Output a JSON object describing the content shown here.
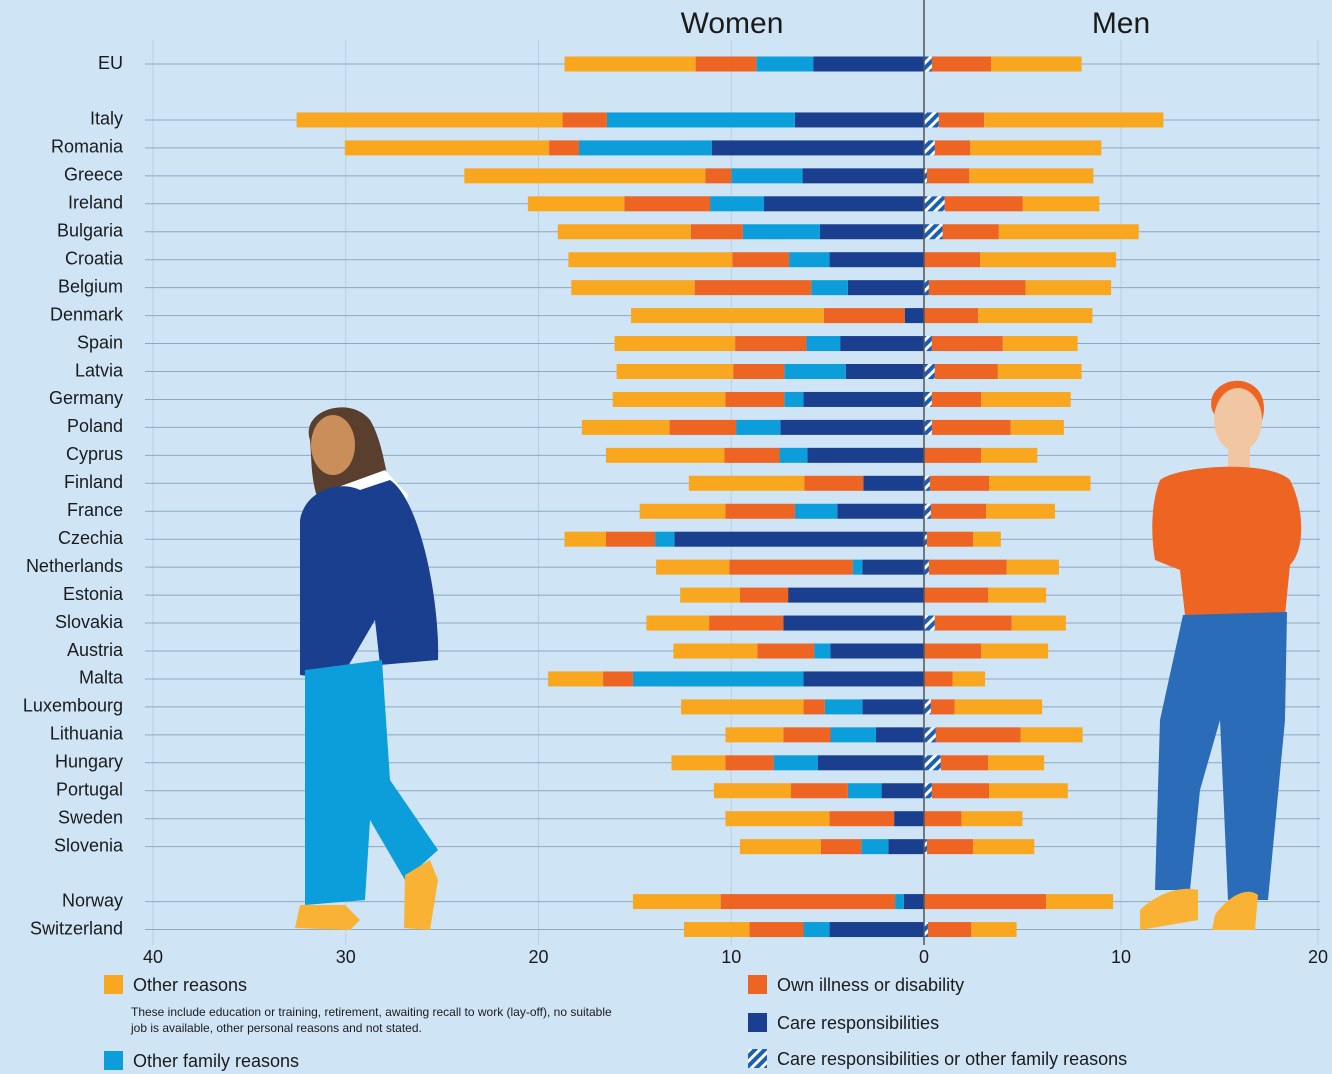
{
  "chart_data": [
    {
      "type": "bar",
      "title": "Women",
      "categories": [
        "EU",
        "Italy",
        "Romania",
        "Greece",
        "Ireland",
        "Bulgaria",
        "Croatia",
        "Belgium",
        "Denmark",
        "Spain",
        "Latvia",
        "Germany",
        "Poland",
        "Cyprus",
        "Finland",
        "France",
        "Czechia",
        "Netherlands",
        "Estonia",
        "Slovakia",
        "Austria",
        "Malta",
        "Luxembourg",
        "Lithuania",
        "Hungary",
        "Portugal",
        "Sweden",
        "Slovenia",
        "Norway",
        "Switzerland"
      ],
      "xlim": [
        40,
        0
      ],
      "xticks": [
        40,
        30,
        20,
        10,
        0
      ],
      "grid": true,
      "series": [
        {
          "name": "Care responsibilities",
          "color": "#1a3f8f",
          "values": [
            5.75,
            6.7,
            11.0,
            6.3,
            8.3,
            5.4,
            4.9,
            3.95,
            1.0,
            4.35,
            4.05,
            6.25,
            7.45,
            6.05,
            3.15,
            4.5,
            12.95,
            3.2,
            7.05,
            7.3,
            4.85,
            6.25,
            3.2,
            2.5,
            5.5,
            2.2,
            1.55,
            1.85,
            1.05,
            4.9
          ]
        },
        {
          "name": "Other family reasons",
          "color": "#0c9ddb",
          "values": [
            2.95,
            9.75,
            6.9,
            3.7,
            2.8,
            4.0,
            2.1,
            1.9,
            0,
            1.75,
            3.2,
            1.0,
            2.3,
            1.45,
            0,
            2.2,
            1.0,
            0.5,
            0,
            0,
            0.85,
            8.85,
            1.95,
            2.35,
            2.3,
            1.75,
            0,
            1.4,
            0.45,
            1.35
          ]
        },
        {
          "name": "Own illness or disability",
          "color": "#ee6423",
          "values": [
            3.15,
            2.3,
            1.55,
            1.35,
            4.45,
            2.7,
            2.95,
            6.05,
            4.2,
            3.7,
            2.65,
            3.05,
            3.45,
            2.85,
            3.05,
            3.6,
            2.55,
            6.4,
            2.5,
            3.85,
            2.95,
            1.55,
            1.1,
            2.45,
            2.5,
            2.95,
            3.35,
            2.1,
            9.05,
            2.8
          ]
        },
        {
          "name": "Other reasons",
          "color": "#f9a71f",
          "values": [
            6.8,
            13.8,
            10.6,
            12.5,
            5.0,
            6.9,
            8.5,
            6.4,
            10.0,
            6.25,
            6.05,
            5.85,
            4.55,
            6.15,
            6.0,
            4.45,
            2.15,
            3.8,
            3.1,
            3.25,
            4.35,
            2.85,
            6.35,
            3.0,
            2.8,
            4.0,
            5.4,
            4.2,
            4.55,
            3.4
          ]
        }
      ],
      "note": "These include education or training, retirement, awaiting recall to work (lay-off), no suitable job is available, other personal reasons and not stated."
    },
    {
      "type": "bar",
      "title": "Men",
      "xlim": [
        0,
        20
      ],
      "xticks": [
        10,
        20
      ],
      "grid": true,
      "series": [
        {
          "name": "Care responsibilities or other family reasons",
          "color": "#1a5fb4",
          "hatch": true,
          "values": [
            0.4,
            0.75,
            0.55,
            0.15,
            1.05,
            0.95,
            0,
            0.25,
            0,
            0.4,
            0.55,
            0.4,
            0.4,
            0,
            0.3,
            0.35,
            0.15,
            0.25,
            0,
            0.55,
            0,
            0,
            0.35,
            0.6,
            0.85,
            0.4,
            0,
            0.15,
            0,
            0.2
          ]
        },
        {
          "color": "#ee6423",
          "values": [
            3.0,
            2.3,
            1.8,
            2.15,
            3.95,
            2.85,
            2.85,
            4.9,
            2.75,
            3.6,
            3.2,
            2.5,
            4.0,
            2.9,
            3.0,
            2.8,
            2.35,
            3.95,
            3.25,
            3.9,
            2.9,
            1.45,
            1.2,
            4.3,
            2.4,
            2.9,
            1.9,
            2.35,
            6.2,
            2.2
          ]
        },
        {
          "color": "#f9a71f",
          "values": [
            4.6,
            9.1,
            6.65,
            6.3,
            3.9,
            7.1,
            6.9,
            4.35,
            5.8,
            3.8,
            4.25,
            4.55,
            2.7,
            2.85,
            5.15,
            3.5,
            1.4,
            2.65,
            2.95,
            2.75,
            3.4,
            1.65,
            4.45,
            3.15,
            2.85,
            4.0,
            3.1,
            3.1,
            3.4,
            2.3
          ]
        }
      ]
    }
  ]
}
